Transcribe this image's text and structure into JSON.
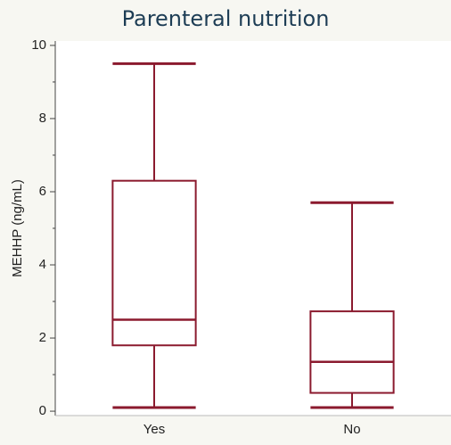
{
  "chart_data": {
    "type": "box",
    "title": "Parenteral nutrition",
    "y_label": "MEHHP (ng/mL)",
    "categories": [
      "Yes",
      "No"
    ],
    "boxes": [
      {
        "min": 0.1,
        "q1": 1.8,
        "median": 2.5,
        "q3": 6.3,
        "max": 9.5
      },
      {
        "min": 0.1,
        "q1": 0.5,
        "median": 1.35,
        "q3": 2.73,
        "max": 5.7
      }
    ],
    "color": "#8b1a2e",
    "ylim": [
      -0.12,
      10.12
    ],
    "yticks": [
      0,
      2,
      4,
      6,
      8,
      10
    ],
    "minor_yticks": [
      1,
      3,
      5,
      7,
      9
    ],
    "grid": false
  }
}
